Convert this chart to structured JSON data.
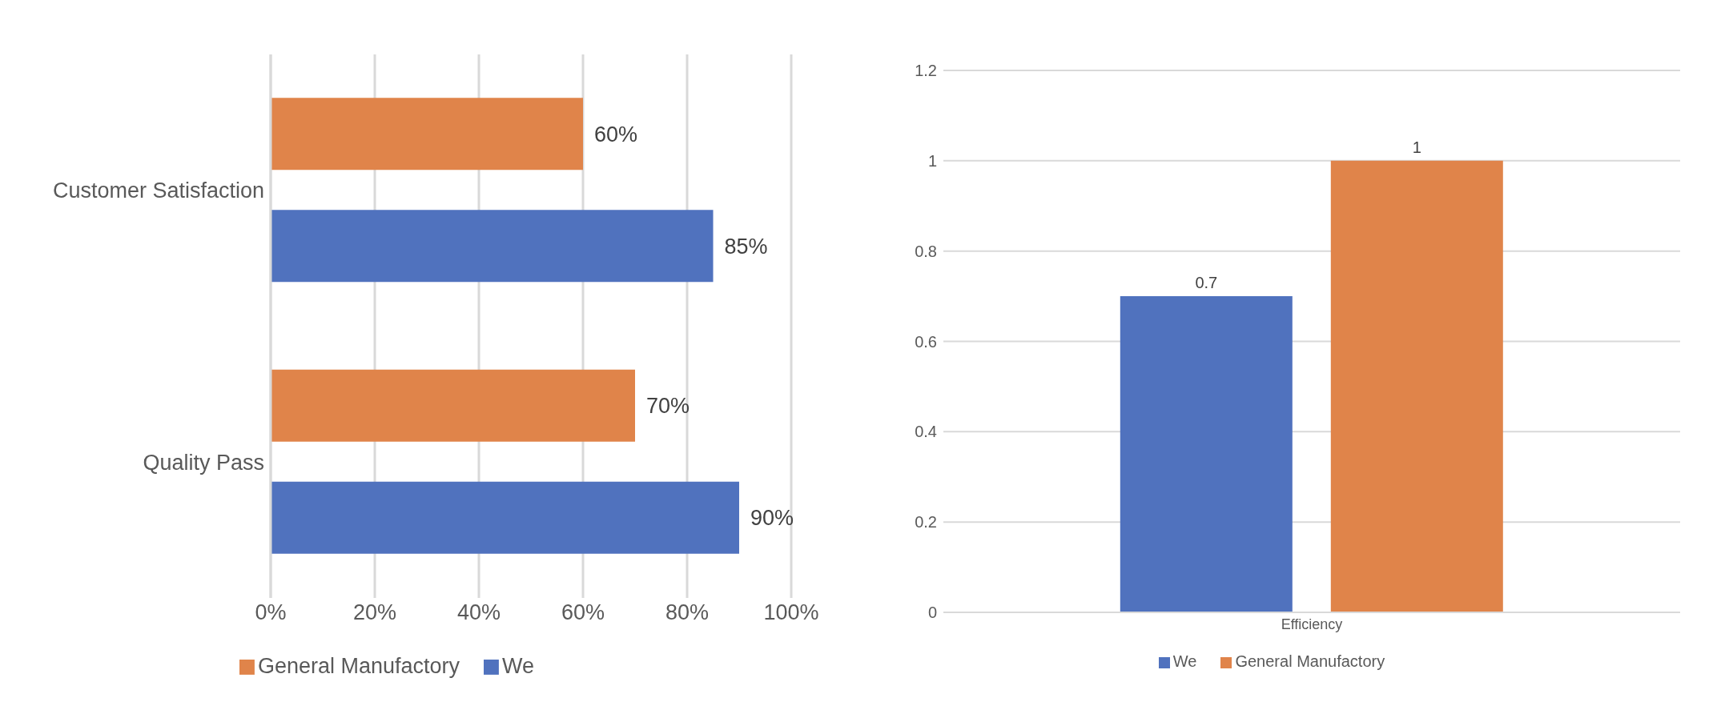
{
  "chart_data": [
    {
      "type": "bar",
      "orientation": "horizontal",
      "categories": [
        "Customer Satisfaction",
        "Quality Pass"
      ],
      "series": [
        {
          "name": "General Manufactory",
          "color": "#e0844a",
          "values": [
            60,
            70
          ],
          "value_labels": [
            "60%",
            "70%"
          ]
        },
        {
          "name": "We",
          "color": "#5072be",
          "values": [
            85,
            90
          ],
          "value_labels": [
            "85%",
            "90%"
          ]
        }
      ],
      "xlim": [
        0,
        100
      ],
      "xticks": [
        {
          "value": 0,
          "label": "0%"
        },
        {
          "value": 20,
          "label": "20%"
        },
        {
          "value": 40,
          "label": "40%"
        },
        {
          "value": 60,
          "label": "60%"
        },
        {
          "value": 80,
          "label": "80%"
        },
        {
          "value": 100,
          "label": "100%"
        }
      ],
      "grid": "x",
      "legend": "bottom"
    },
    {
      "type": "bar",
      "categories": [
        "Efficiency"
      ],
      "series": [
        {
          "name": "We",
          "color": "#5072be",
          "values": [
            0.7
          ]
        },
        {
          "name": "General Manufactory",
          "color": "#e0844a",
          "values": [
            1
          ]
        }
      ],
      "ylim": [
        0,
        1.2
      ],
      "yticks": [
        0,
        0.2,
        0.4,
        0.6,
        0.8,
        1,
        1.2
      ],
      "data_labels": true,
      "grid": "y",
      "legend": "bottom"
    }
  ]
}
